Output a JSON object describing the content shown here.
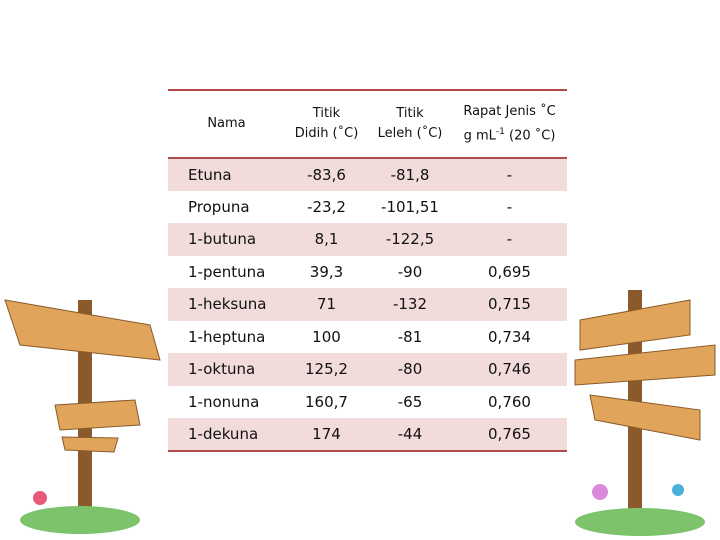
{
  "table": {
    "header": {
      "nama": "Nama",
      "didih": [
        "Titik",
        "Didih (˚C)"
      ],
      "leleh": [
        "Titik",
        "Leleh (˚C)"
      ],
      "rapat": [
        "Rapat Jenis ˚C",
        "g mL",
        "-1",
        "(20 ˚C)"
      ]
    },
    "rows": [
      [
        "Etuna",
        "-83,6",
        "-81,8",
        "-"
      ],
      [
        "Propuna",
        "-23,2",
        "-101,51",
        "-"
      ],
      [
        "1-butuna",
        "8,1",
        "-122,5",
        "-"
      ],
      [
        "1-pentuna",
        "39,3",
        "-90",
        "0,695"
      ],
      [
        "1-heksuna",
        "71",
        "-132",
        "0,715"
      ],
      [
        "1-heptuna",
        "100",
        "-81",
        "0,734"
      ],
      [
        "1-oktuna",
        "125,2",
        "-80",
        "0,746"
      ],
      [
        "1-nonuna",
        "160,7",
        "-65",
        "0,760"
      ],
      [
        "1-dekuna",
        "174",
        "-44",
        "0,765"
      ]
    ]
  }
}
